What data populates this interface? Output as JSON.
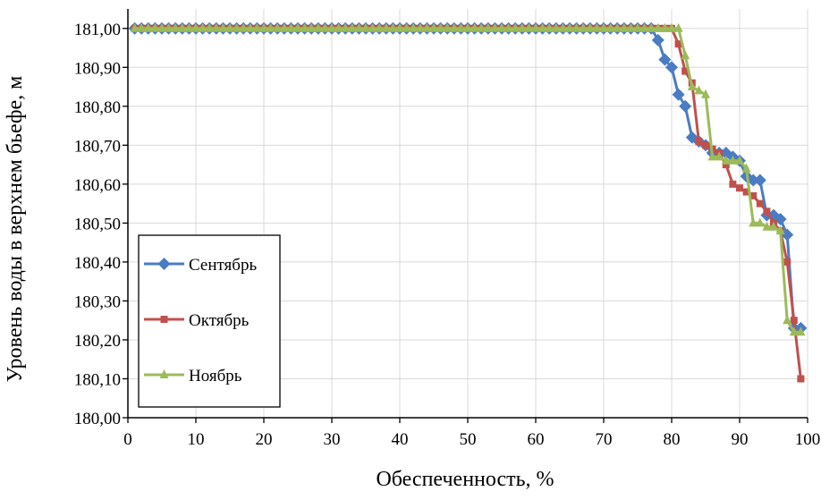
{
  "chart_data": {
    "type": "line",
    "title": "",
    "xlabel": "Обеспеченность, %",
    "ylabel": "Уровень воды в верхнем бьефе, м",
    "xlim": [
      0,
      100
    ],
    "ylim": [
      180.0,
      181.05
    ],
    "x_ticks": [
      "0",
      "10",
      "20",
      "30",
      "40",
      "50",
      "60",
      "70",
      "80",
      "90",
      "100"
    ],
    "y_ticks": [
      "180,00",
      "180,10",
      "180,20",
      "180,30",
      "180,40",
      "180,50",
      "180,60",
      "180,70",
      "180,80",
      "180,90",
      "181,00"
    ],
    "grid": true,
    "legend_position": "left",
    "series": [
      {
        "name": "Сентябрь",
        "color": "#4a7cc4",
        "marker": "diamond",
        "x": [
          1,
          2,
          3,
          4,
          5,
          6,
          7,
          8,
          9,
          10,
          11,
          12,
          13,
          14,
          15,
          16,
          17,
          18,
          19,
          20,
          21,
          22,
          23,
          24,
          25,
          26,
          27,
          28,
          29,
          30,
          31,
          32,
          33,
          34,
          35,
          36,
          37,
          38,
          39,
          40,
          41,
          42,
          43,
          44,
          45,
          46,
          47,
          48,
          49,
          50,
          51,
          52,
          53,
          54,
          55,
          56,
          57,
          58,
          59,
          60,
          61,
          62,
          63,
          64,
          65,
          66,
          67,
          68,
          69,
          70,
          71,
          72,
          73,
          74,
          75,
          76,
          77,
          78,
          79,
          80,
          81,
          82,
          83,
          84,
          85,
          86,
          87,
          88,
          89,
          90,
          91,
          92,
          93,
          94,
          95,
          96,
          97,
          98,
          99
        ],
        "y": [
          181.0,
          181.0,
          181.0,
          181.0,
          181.0,
          181.0,
          181.0,
          181.0,
          181.0,
          181.0,
          181.0,
          181.0,
          181.0,
          181.0,
          181.0,
          181.0,
          181.0,
          181.0,
          181.0,
          181.0,
          181.0,
          181.0,
          181.0,
          181.0,
          181.0,
          181.0,
          181.0,
          181.0,
          181.0,
          181.0,
          181.0,
          181.0,
          181.0,
          181.0,
          181.0,
          181.0,
          181.0,
          181.0,
          181.0,
          181.0,
          181.0,
          181.0,
          181.0,
          181.0,
          181.0,
          181.0,
          181.0,
          181.0,
          181.0,
          181.0,
          181.0,
          181.0,
          181.0,
          181.0,
          181.0,
          181.0,
          181.0,
          181.0,
          181.0,
          181.0,
          181.0,
          181.0,
          181.0,
          181.0,
          181.0,
          181.0,
          181.0,
          181.0,
          181.0,
          181.0,
          181.0,
          181.0,
          181.0,
          181.0,
          181.0,
          181.0,
          181.0,
          180.97,
          180.92,
          180.9,
          180.83,
          180.8,
          180.72,
          180.71,
          180.7,
          180.68,
          180.68,
          180.68,
          180.67,
          180.66,
          180.62,
          180.61,
          180.61,
          180.52,
          180.52,
          180.51,
          180.47,
          180.23,
          180.23
        ]
      },
      {
        "name": "Октябрь",
        "color": "#c0504d",
        "marker": "square",
        "x": [
          1,
          2,
          3,
          4,
          5,
          6,
          7,
          8,
          9,
          10,
          11,
          12,
          13,
          14,
          15,
          16,
          17,
          18,
          19,
          20,
          21,
          22,
          23,
          24,
          25,
          26,
          27,
          28,
          29,
          30,
          31,
          32,
          33,
          34,
          35,
          36,
          37,
          38,
          39,
          40,
          41,
          42,
          43,
          44,
          45,
          46,
          47,
          48,
          49,
          50,
          51,
          52,
          53,
          54,
          55,
          56,
          57,
          58,
          59,
          60,
          61,
          62,
          63,
          64,
          65,
          66,
          67,
          68,
          69,
          70,
          71,
          72,
          73,
          74,
          75,
          76,
          77,
          78,
          79,
          80,
          81,
          82,
          83,
          84,
          85,
          86,
          87,
          88,
          89,
          90,
          91,
          92,
          93,
          94,
          95,
          96,
          97,
          98,
          99
        ],
        "y": [
          181.0,
          181.0,
          181.0,
          181.0,
          181.0,
          181.0,
          181.0,
          181.0,
          181.0,
          181.0,
          181.0,
          181.0,
          181.0,
          181.0,
          181.0,
          181.0,
          181.0,
          181.0,
          181.0,
          181.0,
          181.0,
          181.0,
          181.0,
          181.0,
          181.0,
          181.0,
          181.0,
          181.0,
          181.0,
          181.0,
          181.0,
          181.0,
          181.0,
          181.0,
          181.0,
          181.0,
          181.0,
          181.0,
          181.0,
          181.0,
          181.0,
          181.0,
          181.0,
          181.0,
          181.0,
          181.0,
          181.0,
          181.0,
          181.0,
          181.0,
          181.0,
          181.0,
          181.0,
          181.0,
          181.0,
          181.0,
          181.0,
          181.0,
          181.0,
          181.0,
          181.0,
          181.0,
          181.0,
          181.0,
          181.0,
          181.0,
          181.0,
          181.0,
          181.0,
          181.0,
          181.0,
          181.0,
          181.0,
          181.0,
          181.0,
          181.0,
          181.0,
          181.0,
          181.0,
          181.0,
          180.96,
          180.89,
          180.86,
          180.71,
          180.7,
          180.69,
          180.68,
          180.65,
          180.6,
          180.59,
          180.58,
          180.57,
          180.55,
          180.53,
          180.5,
          180.48,
          180.4,
          180.25,
          180.1
        ]
      },
      {
        "name": "Ноябрь",
        "color": "#9bbb59",
        "marker": "triangle",
        "x": [
          1,
          2,
          3,
          4,
          5,
          6,
          7,
          8,
          9,
          10,
          11,
          12,
          13,
          14,
          15,
          16,
          17,
          18,
          19,
          20,
          21,
          22,
          23,
          24,
          25,
          26,
          27,
          28,
          29,
          30,
          31,
          32,
          33,
          34,
          35,
          36,
          37,
          38,
          39,
          40,
          41,
          42,
          43,
          44,
          45,
          46,
          47,
          48,
          49,
          50,
          51,
          52,
          53,
          54,
          55,
          56,
          57,
          58,
          59,
          60,
          61,
          62,
          63,
          64,
          65,
          66,
          67,
          68,
          69,
          70,
          71,
          72,
          73,
          74,
          75,
          76,
          77,
          78,
          79,
          80,
          81,
          82,
          83,
          84,
          85,
          86,
          87,
          88,
          89,
          90,
          91,
          92,
          93,
          94,
          95,
          96,
          97,
          98,
          99
        ],
        "y": [
          181.0,
          181.0,
          181.0,
          181.0,
          181.0,
          181.0,
          181.0,
          181.0,
          181.0,
          181.0,
          181.0,
          181.0,
          181.0,
          181.0,
          181.0,
          181.0,
          181.0,
          181.0,
          181.0,
          181.0,
          181.0,
          181.0,
          181.0,
          181.0,
          181.0,
          181.0,
          181.0,
          181.0,
          181.0,
          181.0,
          181.0,
          181.0,
          181.0,
          181.0,
          181.0,
          181.0,
          181.0,
          181.0,
          181.0,
          181.0,
          181.0,
          181.0,
          181.0,
          181.0,
          181.0,
          181.0,
          181.0,
          181.0,
          181.0,
          181.0,
          181.0,
          181.0,
          181.0,
          181.0,
          181.0,
          181.0,
          181.0,
          181.0,
          181.0,
          181.0,
          181.0,
          181.0,
          181.0,
          181.0,
          181.0,
          181.0,
          181.0,
          181.0,
          181.0,
          181.0,
          181.0,
          181.0,
          181.0,
          181.0,
          181.0,
          181.0,
          181.0,
          181.0,
          181.0,
          181.0,
          181.0,
          180.93,
          180.85,
          180.84,
          180.83,
          180.67,
          180.67,
          180.66,
          180.66,
          180.66,
          180.64,
          180.5,
          180.5,
          180.49,
          180.49,
          180.48,
          180.25,
          180.22,
          180.22
        ]
      }
    ]
  }
}
